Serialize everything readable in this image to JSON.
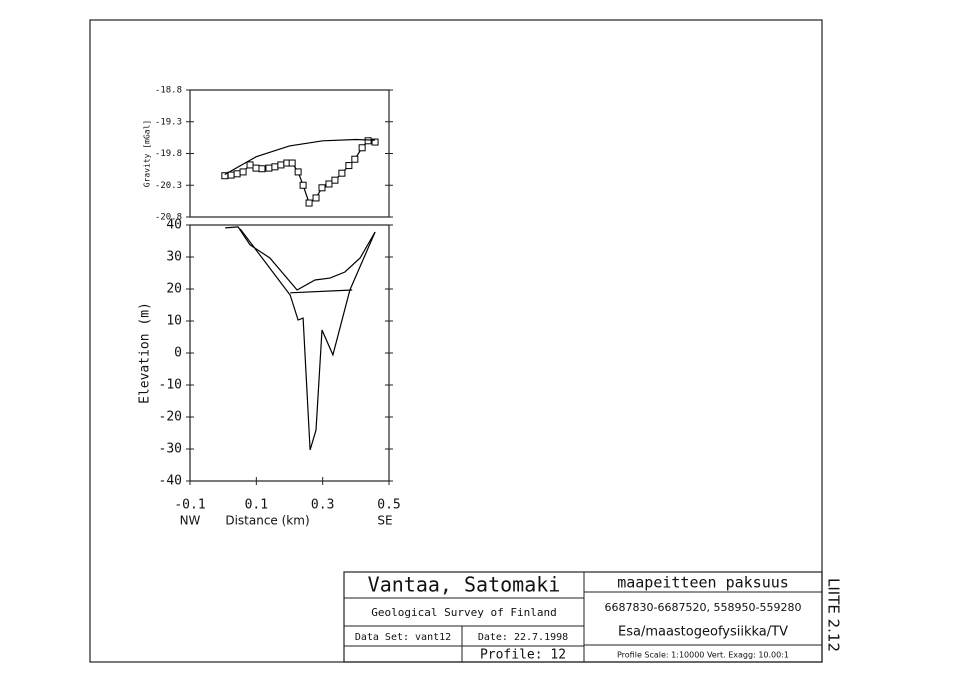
{
  "chart_data": [
    {
      "type": "line",
      "ylabel": "Gravity [mGal]",
      "xlim": [
        -0.1,
        0.5
      ],
      "ylim": [
        -20.8,
        -18.8
      ],
      "yticks": [
        -18.8,
        -19.3,
        -19.8,
        -20.3,
        -20.8
      ],
      "series": [
        {
          "color": "#000000",
          "marker": "square",
          "x": [
            0.005,
            0.024,
            0.042,
            0.06,
            0.081,
            0.099,
            0.117,
            0.138,
            0.156,
            0.174,
            0.192,
            0.208,
            0.226,
            0.241,
            0.259,
            0.28,
            0.298,
            0.319,
            0.337,
            0.358,
            0.379,
            0.397,
            0.419,
            0.437,
            0.458
          ],
          "values": [
            -20.15,
            -20.14,
            -20.12,
            -20.09,
            -19.98,
            -20.03,
            -20.04,
            -20.03,
            -20.01,
            -19.98,
            -19.95,
            -19.95,
            -20.09,
            -20.3,
            -20.58,
            -20.5,
            -20.34,
            -20.28,
            -20.22,
            -20.11,
            -19.99,
            -19.89,
            -19.71,
            -19.6,
            -19.62
          ]
        },
        {
          "color": "#000000",
          "x": [
            0.005,
            0.1,
            0.2,
            0.3,
            0.4,
            0.458
          ],
          "values": [
            -20.13,
            -19.85,
            -19.68,
            -19.6,
            -19.58,
            -19.59
          ]
        }
      ]
    },
    {
      "type": "line",
      "ylabel": "Elevation (m)",
      "xlabel": "Distance (km)",
      "x_end_labels": [
        "NW",
        "SE"
      ],
      "xlim": [
        -0.1,
        0.5
      ],
      "ylim": [
        -40,
        40
      ],
      "xticks": [
        -0.1,
        0.1,
        0.3,
        0.5
      ],
      "yticks": [
        40,
        30,
        20,
        10,
        0,
        -10,
        -20,
        -30,
        -40
      ],
      "series": [
        {
          "color": "#000000",
          "x": [
            0.006,
            0.045,
            0.081,
            0.141,
            0.223,
            0.277,
            0.322,
            0.367,
            0.413,
            0.458
          ],
          "values": [
            39.1,
            39.4,
            33.8,
            29.7,
            19.7,
            22.8,
            23.4,
            25.3,
            29.7,
            37.8
          ]
        },
        {
          "color": "#000000",
          "x": [
            0.051,
            0.202,
            0.226,
            0.241,
            0.262,
            0.28,
            0.298,
            0.331,
            0.382,
            0.458
          ],
          "values": [
            38.8,
            18.1,
            10.3,
            10.9,
            -30.3,
            -24.1,
            7.2,
            -0.6,
            19.7,
            37.8
          ]
        },
        {
          "color": "#000000",
          "x": [
            0.202,
            0.389
          ],
          "values": [
            18.8,
            19.7
          ]
        }
      ]
    }
  ],
  "title_block": {
    "place": "Vantaa, Satomaki",
    "organisation": "Geological Survey of Finland",
    "data_set": "Data Set: vant12",
    "date": "Date: 22.7.1998",
    "profile": "Profile: 12",
    "subject": "maapeitteen paksuus",
    "coordinates": "6687830-6687520, 558950-559280",
    "author": "Esa/maastogeofysiikka/TV",
    "scale": "Profile Scale: 1:10000 Vert. Exagg: 10.00:1",
    "appendix": "LIITE 2.12"
  }
}
